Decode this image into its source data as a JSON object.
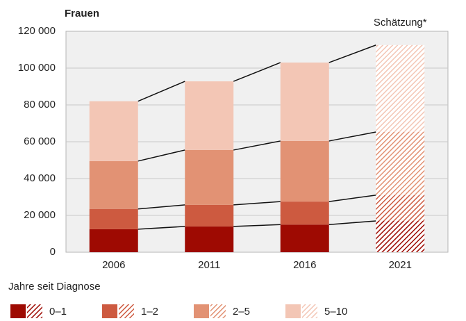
{
  "chart_data": {
    "type": "stacked_bar",
    "title": "Frauen",
    "categories": [
      "2006",
      "2011",
      "2016",
      "2021"
    ],
    "series": [
      {
        "name": "0–1",
        "color": "#9e0a02",
        "values": [
          12500,
          14000,
          15000,
          17000
        ]
      },
      {
        "name": "1–2",
        "color": "#cd5a40",
        "values": [
          11000,
          11700,
          12500,
          14000
        ]
      },
      {
        "name": "2–5",
        "color": "#e29274",
        "values": [
          26000,
          29800,
          32900,
          34300
        ]
      },
      {
        "name": "5–10",
        "color": "#f3c6b5",
        "values": [
          32500,
          37300,
          42600,
          47200
        ]
      }
    ],
    "estimate": {
      "label": "Schätzung*",
      "category": "2021"
    },
    "legend_title": "Jahre seit Diagnose",
    "ylim": [
      0,
      120000
    ],
    "yticks": [
      0,
      {
        "value": 20000,
        "label": "20 000"
      },
      {
        "value": 40000,
        "label": "40 000"
      },
      {
        "value": 60000,
        "label": "60 000"
      },
      {
        "value": 80000,
        "label": "80 000"
      },
      {
        "value": 100000,
        "label": "100 000"
      },
      {
        "value": 120000,
        "label": "120 000"
      }
    ],
    "grid": true,
    "legend": "bottom"
  }
}
